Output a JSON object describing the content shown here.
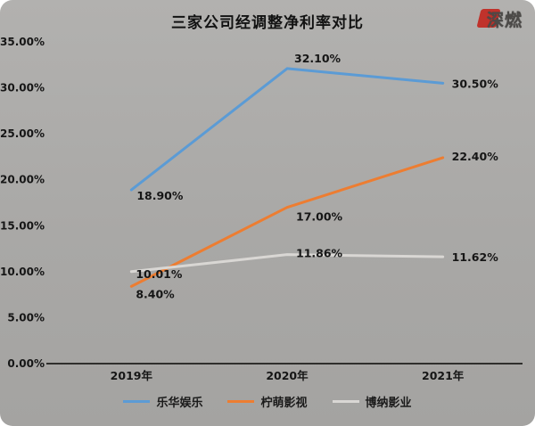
{
  "page": {
    "title": "三家公司经调整净利率对比",
    "logo_text": "深燃"
  },
  "chart_data": {
    "type": "line",
    "title": "三家公司经调整净利率对比",
    "categories": [
      "2019年",
      "2020年",
      "2021年"
    ],
    "series": [
      {
        "name": "乐华娱乐",
        "color": "#5b9bd5",
        "values": [
          18.9,
          32.1,
          30.5
        ],
        "labels": [
          "18.90%",
          "32.10%",
          "30.50%"
        ]
      },
      {
        "name": "柠萌影视",
        "color": "#ed7d31",
        "values": [
          8.4,
          17.0,
          22.4
        ],
        "labels": [
          "8.40%",
          "17.00%",
          "22.40%"
        ]
      },
      {
        "name": "博纳影业",
        "color": "#d9d7d4",
        "values": [
          10.01,
          11.86,
          11.62
        ],
        "labels": [
          "10.01%",
          "11.86%",
          "11.62%"
        ]
      }
    ],
    "ylim": [
      0,
      35
    ],
    "y_ticks": [
      "0.00%",
      "5.00%",
      "10.00%",
      "15.00%",
      "20.00%",
      "25.00%",
      "30.00%",
      "35.00%"
    ],
    "grid": false,
    "legend_position": "bottom",
    "text_color": "#161616",
    "axis_color": "#2f2e2c"
  }
}
